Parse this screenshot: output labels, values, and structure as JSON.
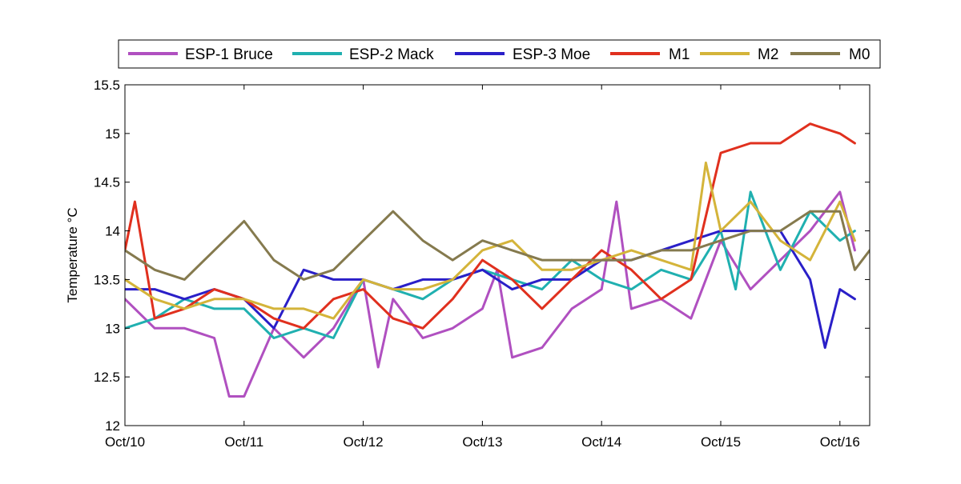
{
  "chart_data": {
    "type": "line",
    "ylabel": "Temperature °C",
    "xlabel": "",
    "xlim": [
      "2014-10-10 00:00",
      "2014-10-16 06:00"
    ],
    "ylim": [
      12,
      15.5
    ],
    "yticks": [
      "12",
      "12.5",
      "13",
      "13.5",
      "14",
      "14.5",
      "15",
      "15.5"
    ],
    "xticks": [
      "Oct/10",
      "Oct/11",
      "Oct/12",
      "Oct/13",
      "Oct/14",
      "Oct/15",
      "Oct/16"
    ],
    "grid": false,
    "legend_position": "top",
    "series": [
      {
        "name": "ESP-1 Bruce",
        "color": "#b050c0",
        "x": [
          "2014-10-10 00:00",
          "2014-10-10 06:00",
          "2014-10-10 12:00",
          "2014-10-10 18:00",
          "2014-10-10 21:00",
          "2014-10-11 00:00",
          "2014-10-11 06:00",
          "2014-10-11 12:00",
          "2014-10-11 18:00",
          "2014-10-12 00:00",
          "2014-10-12 03:00",
          "2014-10-12 06:00",
          "2014-10-12 12:00",
          "2014-10-12 18:00",
          "2014-10-13 00:00",
          "2014-10-13 03:00",
          "2014-10-13 06:00",
          "2014-10-13 12:00",
          "2014-10-13 18:00",
          "2014-10-14 00:00",
          "2014-10-14 03:00",
          "2014-10-14 06:00",
          "2014-10-14 12:00",
          "2014-10-14 18:00",
          "2014-10-15 00:00",
          "2014-10-15 06:00",
          "2014-10-15 12:00",
          "2014-10-15 18:00",
          "2014-10-16 00:00",
          "2014-10-16 03:00"
        ],
        "y": [
          13.3,
          13.0,
          13.0,
          12.9,
          12.3,
          12.3,
          13.0,
          12.7,
          13.0,
          13.5,
          12.6,
          13.3,
          12.9,
          13.0,
          13.2,
          13.6,
          12.7,
          12.8,
          13.2,
          13.4,
          14.3,
          13.2,
          13.3,
          13.1,
          13.9,
          13.4,
          13.7,
          14.0,
          14.4,
          13.8
        ]
      },
      {
        "name": "ESP-2 Mack",
        "color": "#20b0b0",
        "x": [
          "2014-10-10 00:00",
          "2014-10-10 06:00",
          "2014-10-10 12:00",
          "2014-10-10 18:00",
          "2014-10-11 00:00",
          "2014-10-11 06:00",
          "2014-10-11 12:00",
          "2014-10-11 18:00",
          "2014-10-12 00:00",
          "2014-10-12 06:00",
          "2014-10-12 12:00",
          "2014-10-12 18:00",
          "2014-10-13 00:00",
          "2014-10-13 06:00",
          "2014-10-13 12:00",
          "2014-10-13 18:00",
          "2014-10-14 00:00",
          "2014-10-14 06:00",
          "2014-10-14 12:00",
          "2014-10-14 18:00",
          "2014-10-15 00:00",
          "2014-10-15 03:00",
          "2014-10-15 06:00",
          "2014-10-15 12:00",
          "2014-10-15 18:00",
          "2014-10-16 00:00",
          "2014-10-16 03:00"
        ],
        "y": [
          13.0,
          13.1,
          13.3,
          13.2,
          13.2,
          12.9,
          13.0,
          12.9,
          13.5,
          13.4,
          13.3,
          13.5,
          13.6,
          13.5,
          13.4,
          13.7,
          13.5,
          13.4,
          13.6,
          13.5,
          14.0,
          13.4,
          14.4,
          13.6,
          14.2,
          13.9,
          14.0
        ]
      },
      {
        "name": "ESP-3 Moe",
        "color": "#2a1fc8",
        "x": [
          "2014-10-10 00:00",
          "2014-10-10 06:00",
          "2014-10-10 12:00",
          "2014-10-10 18:00",
          "2014-10-11 00:00",
          "2014-10-11 06:00",
          "2014-10-11 12:00",
          "2014-10-11 18:00",
          "2014-10-12 00:00",
          "2014-10-12 06:00",
          "2014-10-12 12:00",
          "2014-10-12 18:00",
          "2014-10-13 00:00",
          "2014-10-13 06:00",
          "2014-10-13 12:00",
          "2014-10-13 18:00",
          "2014-10-14 00:00",
          "2014-10-14 06:00",
          "2014-10-14 12:00",
          "2014-10-14 18:00",
          "2014-10-15 00:00",
          "2014-10-15 06:00",
          "2014-10-15 12:00",
          "2014-10-15 18:00",
          "2014-10-15 21:00",
          "2014-10-16 00:00",
          "2014-10-16 03:00"
        ],
        "y": [
          13.4,
          13.4,
          13.3,
          13.4,
          13.3,
          13.0,
          13.6,
          13.5,
          13.5,
          13.4,
          13.5,
          13.5,
          13.6,
          13.4,
          13.5,
          13.5,
          13.7,
          13.7,
          13.8,
          13.9,
          14.0,
          14.0,
          14.0,
          13.5,
          12.8,
          13.4,
          13.3
        ]
      },
      {
        "name": "M1",
        "color": "#e0301e",
        "x": [
          "2014-10-10 00:00",
          "2014-10-10 02:00",
          "2014-10-10 06:00",
          "2014-10-10 12:00",
          "2014-10-10 18:00",
          "2014-10-11 00:00",
          "2014-10-11 06:00",
          "2014-10-11 12:00",
          "2014-10-11 18:00",
          "2014-10-12 00:00",
          "2014-10-12 06:00",
          "2014-10-12 12:00",
          "2014-10-12 18:00",
          "2014-10-13 00:00",
          "2014-10-13 06:00",
          "2014-10-13 12:00",
          "2014-10-13 18:00",
          "2014-10-14 00:00",
          "2014-10-14 06:00",
          "2014-10-14 12:00",
          "2014-10-14 18:00",
          "2014-10-15 00:00",
          "2014-10-15 06:00",
          "2014-10-15 12:00",
          "2014-10-15 18:00",
          "2014-10-16 00:00",
          "2014-10-16 03:00"
        ],
        "y": [
          13.8,
          14.3,
          13.1,
          13.2,
          13.4,
          13.3,
          13.1,
          13.0,
          13.3,
          13.4,
          13.1,
          13.0,
          13.3,
          13.7,
          13.5,
          13.2,
          13.5,
          13.8,
          13.6,
          13.3,
          13.5,
          14.8,
          14.9,
          14.9,
          15.1,
          15.0,
          14.9
        ]
      },
      {
        "name": "M2",
        "color": "#d4b43a",
        "x": [
          "2014-10-10 00:00",
          "2014-10-10 06:00",
          "2014-10-10 12:00",
          "2014-10-10 18:00",
          "2014-10-11 00:00",
          "2014-10-11 06:00",
          "2014-10-11 12:00",
          "2014-10-11 18:00",
          "2014-10-12 00:00",
          "2014-10-12 06:00",
          "2014-10-12 12:00",
          "2014-10-12 18:00",
          "2014-10-13 00:00",
          "2014-10-13 06:00",
          "2014-10-13 12:00",
          "2014-10-13 18:00",
          "2014-10-14 00:00",
          "2014-10-14 06:00",
          "2014-10-14 12:00",
          "2014-10-14 18:00",
          "2014-10-14 21:00",
          "2014-10-15 00:00",
          "2014-10-15 06:00",
          "2014-10-15 12:00",
          "2014-10-15 18:00",
          "2014-10-16 00:00",
          "2014-10-16 03:00"
        ],
        "y": [
          13.5,
          13.3,
          13.2,
          13.3,
          13.3,
          13.2,
          13.2,
          13.1,
          13.5,
          13.4,
          13.4,
          13.5,
          13.8,
          13.9,
          13.6,
          13.6,
          13.7,
          13.8,
          13.7,
          13.6,
          14.7,
          14.0,
          14.3,
          13.9,
          13.7,
          14.3,
          13.9
        ]
      },
      {
        "name": "M0",
        "color": "#857a4e",
        "x": [
          "2014-10-10 00:00",
          "2014-10-10 06:00",
          "2014-10-10 12:00",
          "2014-10-10 18:00",
          "2014-10-11 00:00",
          "2014-10-11 06:00",
          "2014-10-11 12:00",
          "2014-10-11 18:00",
          "2014-10-12 00:00",
          "2014-10-12 06:00",
          "2014-10-12 12:00",
          "2014-10-12 18:00",
          "2014-10-13 00:00",
          "2014-10-13 06:00",
          "2014-10-13 12:00",
          "2014-10-13 18:00",
          "2014-10-14 00:00",
          "2014-10-14 06:00",
          "2014-10-14 12:00",
          "2014-10-14 18:00",
          "2014-10-15 00:00",
          "2014-10-15 06:00",
          "2014-10-15 12:00",
          "2014-10-15 18:00",
          "2014-10-16 00:00",
          "2014-10-16 03:00",
          "2014-10-16 06:00"
        ],
        "y": [
          13.8,
          13.6,
          13.5,
          13.8,
          14.1,
          13.7,
          13.5,
          13.6,
          13.9,
          14.2,
          13.9,
          13.7,
          13.9,
          13.8,
          13.7,
          13.7,
          13.7,
          13.7,
          13.8,
          13.8,
          13.9,
          14.0,
          14.0,
          14.2,
          14.2,
          13.6,
          13.8
        ]
      }
    ]
  }
}
